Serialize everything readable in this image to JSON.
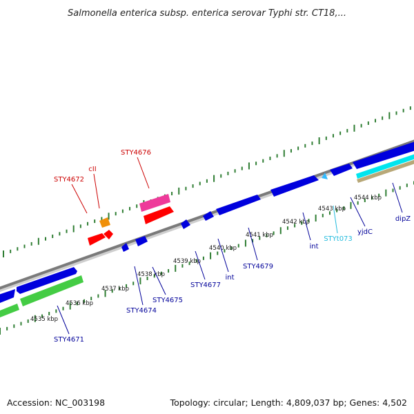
{
  "title": "Salmonella enterica subsp. enterica serovar Typhi str. CT18,...",
  "footer": {
    "accession": "Accession: NC_003198",
    "topology": "Topology: circular; Length: 4,809,037 bp; Genes: 4,502"
  },
  "colors": {
    "backbone": "#888888",
    "ticks": "#2e7d32",
    "forward_gene": "#0000dd",
    "forward_gene_alt": "#ff0000",
    "pink_gene": "#ee3a9a",
    "orange_gene": "#f0900a",
    "cyan_gene": "#00e5ee",
    "tan_gene": "#b8a878",
    "green_gene": "#44cc44",
    "label_blue": "#000099",
    "label_red": "#cc0000",
    "label_cyan": "#22bbdd"
  },
  "kbp_labels": [
    {
      "text": "4535 kbp"
    },
    {
      "text": "4536 kbp"
    },
    {
      "text": "4537 kbp"
    },
    {
      "text": "4538 kbp"
    },
    {
      "text": "4539 kbp"
    },
    {
      "text": "4540 kbp"
    },
    {
      "text": "4541 kbp"
    },
    {
      "text": "4542 kbp"
    },
    {
      "text": "4543 kbp"
    },
    {
      "text": "4544 kbp"
    }
  ],
  "gene_labels": [
    {
      "text": "STY4676",
      "color": "red"
    },
    {
      "text": "cII",
      "color": "red"
    },
    {
      "text": "STY4672",
      "color": "red"
    },
    {
      "text": "STY4671",
      "color": "blue"
    },
    {
      "text": "STY4674",
      "color": "blue"
    },
    {
      "text": "STY4675",
      "color": "blue"
    },
    {
      "text": "STY4677",
      "color": "blue"
    },
    {
      "text": "int",
      "color": "blue"
    },
    {
      "text": "STY4679",
      "color": "blue"
    },
    {
      "text": "int",
      "color": "blue"
    },
    {
      "text": "STYt073",
      "color": "cyan"
    },
    {
      "text": "yjdC",
      "color": "blue"
    },
    {
      "text": "dipZ",
      "color": "blue"
    }
  ]
}
